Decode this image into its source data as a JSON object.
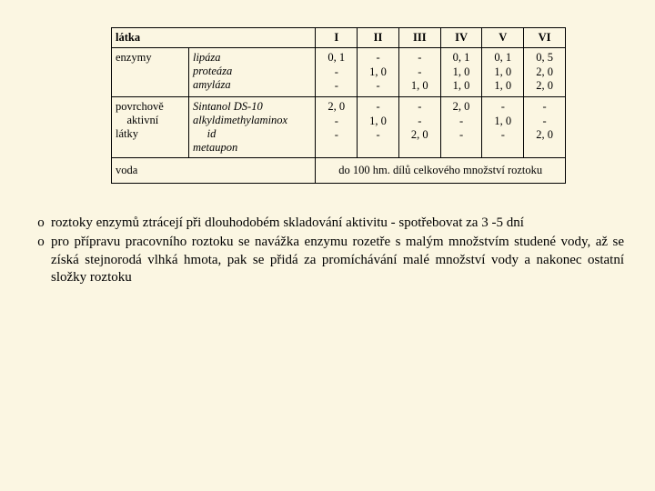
{
  "table": {
    "header": [
      "látka",
      "I",
      "II",
      "III",
      "IV",
      "V",
      "VI"
    ],
    "rows": [
      {
        "c0": "enzymy",
        "c1": [
          "lipáza",
          "proteáza",
          "amyláza"
        ],
        "I": [
          "0, 1",
          "-",
          "-"
        ],
        "II": [
          "-",
          "1, 0",
          "-"
        ],
        "III": [
          "-",
          "-",
          "1, 0"
        ],
        "IV": [
          "0, 1",
          "1, 0",
          "1, 0"
        ],
        "V": [
          "0, 1",
          "1, 0",
          "1, 0"
        ],
        "VI": [
          "0, 5",
          "2, 0",
          "2, 0"
        ]
      },
      {
        "c0": [
          "povrchově",
          "    aktivní",
          "látky"
        ],
        "c1": [
          "Sintanol DS-10",
          "alkyldimethylaminox",
          "     id",
          "metaupon"
        ],
        "I": [
          "2, 0",
          "-",
          "-"
        ],
        "II": [
          "-",
          "1, 0",
          "-"
        ],
        "III": [
          "-",
          "-",
          "2, 0"
        ],
        "IV": [
          "2, 0",
          "-",
          "-"
        ],
        "V": [
          "-",
          "1, 0",
          "-"
        ],
        "VI": [
          "-",
          "-",
          "2, 0"
        ]
      }
    ],
    "footer_label": "voda",
    "footer_value": "do 100 hm. dílů celkového množství roztoku"
  },
  "notes": [
    "roztoky enzymů ztrácejí při dlouhodobém skladování aktivitu - spotřebovat za 3 -5 dní",
    "pro přípravu pracovního roztoku se navážka enzymu rozetře s malým množstvím studené vody, až se získá stejnorodá vlhká hmota, pak se přidá za promíchávání malé množství vody a nakonec ostatní složky roztoku"
  ],
  "bullet_glyph": "o"
}
